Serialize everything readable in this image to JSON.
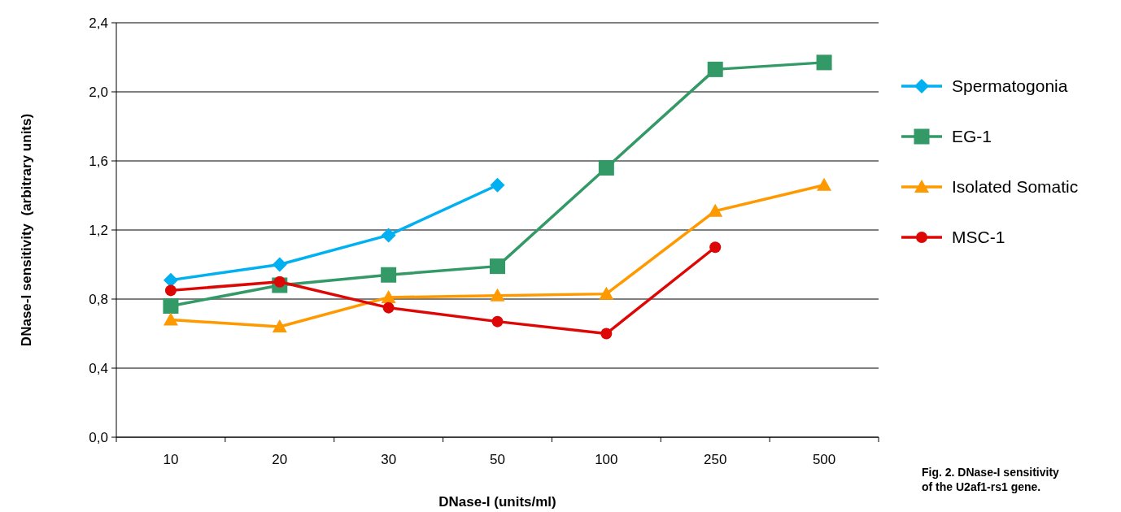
{
  "chart_data": {
    "type": "line",
    "xlabel": "DNase-I (units/ml)",
    "ylabel": "DNase-I sensitivity  (arbitrary units)",
    "categories": [
      "10",
      "20",
      "30",
      "50",
      "100",
      "250",
      "500"
    ],
    "ylim": [
      0,
      2.4
    ],
    "yticks": [
      {
        "value": 0,
        "label": "0,0"
      },
      {
        "value": 0.4,
        "label": "0,4"
      },
      {
        "value": 0.8,
        "label": "0,8"
      },
      {
        "value": 1.2,
        "label": "1,2"
      },
      {
        "value": 1.6,
        "label": "1,6"
      },
      {
        "value": 2.0,
        "label": "2,0"
      },
      {
        "value": 2.4,
        "label": "2,4"
      }
    ],
    "grid": "y",
    "legend": "right",
    "series": [
      {
        "name": "Spermatogonia",
        "color": "#00b0f0",
        "marker": "diamond",
        "values": [
          0.91,
          1.0,
          1.17,
          1.46,
          null,
          null,
          null
        ]
      },
      {
        "name": "EG-1",
        "color": "#339966",
        "marker": "square",
        "values": [
          0.76,
          0.88,
          0.94,
          0.99,
          1.56,
          2.13,
          2.17
        ]
      },
      {
        "name": "Isolated Somatic",
        "color": "#ff9900",
        "marker": "triangle",
        "values": [
          0.68,
          0.64,
          0.81,
          0.82,
          0.83,
          1.31,
          1.46
        ]
      },
      {
        "name": "MSC-1",
        "color": "#dd0806",
        "marker": "circle",
        "values": [
          0.85,
          0.9,
          0.75,
          0.67,
          0.6,
          1.1,
          null
        ]
      }
    ],
    "annotations": [
      "Fig. 2. DNase-I sensitivity of the U2af1-rs1 gene."
    ]
  }
}
